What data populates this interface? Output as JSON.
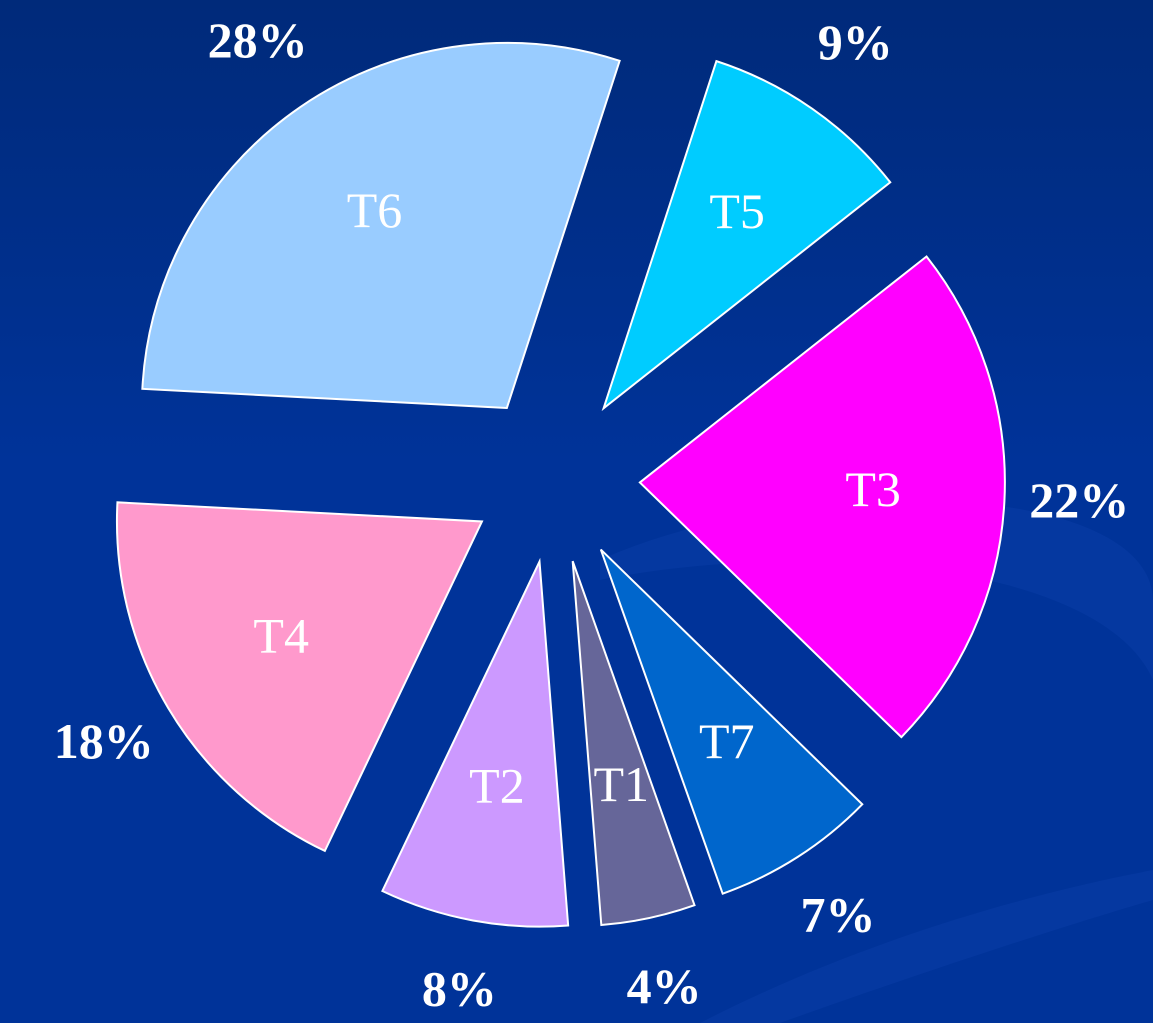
{
  "chart_data": {
    "type": "pie",
    "categories": [
      "T5",
      "T3",
      "T7",
      "T1",
      "T2",
      "T4",
      "T6"
    ],
    "values": [
      9,
      22,
      7,
      4,
      8,
      18,
      28
    ],
    "value_labels": [
      "9%",
      "22%",
      "7%",
      "4%",
      "8%",
      "18%",
      "28%"
    ],
    "colors": [
      "#00ccff",
      "#ff00ff",
      "#0066cc",
      "#666699",
      "#cc99ff",
      "#ff99cc",
      "#99ccff"
    ]
  }
}
